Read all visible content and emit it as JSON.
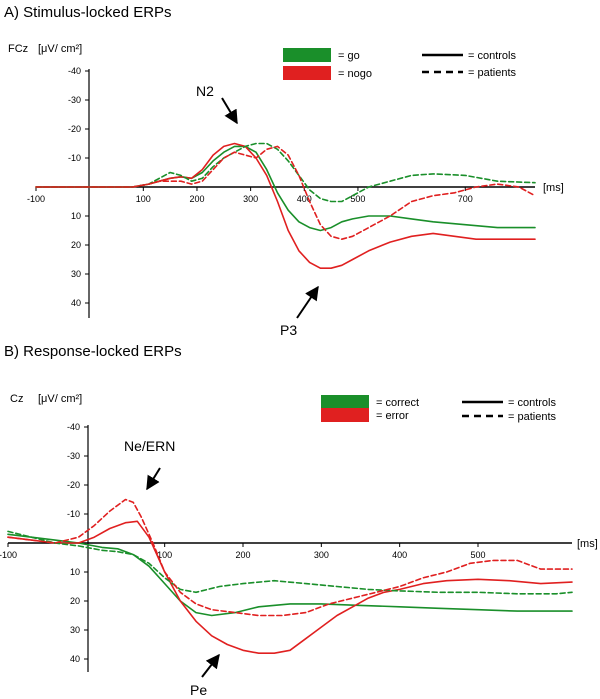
{
  "chart_data": [
    {
      "type": "line",
      "title": "A) Stimulus-locked ERPs",
      "channel_label": "FCz",
      "unit_label": "[μV/ cm²]",
      "xunit": "[ms]",
      "xlim": [
        -100,
        830
      ],
      "ylim": [
        -40,
        40
      ],
      "y_inverted": true,
      "xticks": [
        -100,
        100,
        200,
        300,
        400,
        500,
        700
      ],
      "yticks": [
        -40,
        -30,
        -20,
        -10,
        10,
        20,
        30,
        40
      ],
      "legend_colors": [
        {
          "label": "= go",
          "color": "#1a8f2a"
        },
        {
          "label": "= nogo",
          "color": "#e02020"
        }
      ],
      "legend_lines": [
        {
          "label": "= controls",
          "style": "solid"
        },
        {
          "label": "= patients",
          "style": "dashed"
        }
      ],
      "annotations": [
        {
          "text": "N2",
          "x": 275,
          "y": -14
        },
        {
          "text": "P3",
          "x": 425,
          "y": 28
        }
      ],
      "series": [
        {
          "color": "#1a8f2a",
          "style": "solid",
          "x": [
            -100,
            -70,
            -40,
            0,
            40,
            80,
            110,
            130,
            150,
            170,
            190,
            210,
            230,
            250,
            270,
            290,
            310,
            330,
            350,
            370,
            390,
            410,
            430,
            450,
            470,
            490,
            520,
            560,
            600,
            640,
            700,
            760,
            830
          ],
          "y": [
            0,
            0,
            0,
            0,
            0,
            0,
            -1,
            -2,
            -3,
            -3.5,
            -3,
            -5,
            -9,
            -12,
            -14,
            -14,
            -12,
            -6,
            2,
            8,
            12,
            14,
            15,
            14,
            12,
            11,
            10,
            10,
            11,
            12,
            13,
            14,
            14
          ]
        },
        {
          "color": "#e02020",
          "style": "solid",
          "x": [
            -100,
            -70,
            -40,
            0,
            40,
            80,
            110,
            130,
            150,
            170,
            190,
            210,
            230,
            250,
            270,
            290,
            310,
            330,
            350,
            370,
            390,
            410,
            430,
            450,
            470,
            490,
            520,
            560,
            600,
            640,
            680,
            720,
            780,
            830
          ],
          "y": [
            0,
            0,
            0,
            0,
            0,
            0,
            -1,
            -2,
            -3,
            -3.5,
            -3,
            -6,
            -11,
            -14,
            -15,
            -14,
            -10,
            -4,
            5,
            15,
            22,
            26,
            28,
            28,
            27,
            25,
            22,
            19,
            17,
            16,
            17,
            18,
            18,
            18
          ]
        },
        {
          "color": "#1a8f2a",
          "style": "dashed",
          "x": [
            -100,
            -70,
            -40,
            0,
            40,
            80,
            110,
            130,
            150,
            170,
            190,
            210,
            230,
            250,
            270,
            290,
            310,
            330,
            350,
            370,
            390,
            410,
            430,
            450,
            470,
            490,
            520,
            560,
            600,
            640,
            700,
            760,
            830
          ],
          "y": [
            0,
            0,
            0,
            0,
            0,
            0,
            -1,
            -3,
            -5,
            -4,
            -2,
            -3,
            -7,
            -10,
            -12,
            -14,
            -15,
            -15,
            -13,
            -9,
            -4,
            1,
            4,
            5,
            5,
            3,
            0,
            -2,
            -4,
            -4.5,
            -4,
            -2,
            -1.5
          ]
        },
        {
          "color": "#e02020",
          "style": "dashed",
          "x": [
            -100,
            -70,
            -40,
            0,
            40,
            80,
            110,
            130,
            150,
            170,
            190,
            210,
            230,
            250,
            270,
            290,
            310,
            330,
            350,
            370,
            390,
            410,
            430,
            450,
            470,
            490,
            520,
            560,
            600,
            640,
            680,
            720,
            760,
            800,
            830
          ],
          "y": [
            0,
            0,
            0,
            0,
            0,
            0,
            -1,
            -2,
            -2,
            -2,
            -1,
            -2,
            -6,
            -10,
            -12,
            -11,
            -10,
            -13,
            -14,
            -11,
            -4,
            5,
            13,
            17,
            18,
            17,
            14,
            10,
            5,
            3,
            2,
            0,
            -1,
            0,
            3
          ]
        }
      ]
    },
    {
      "type": "line",
      "title": "B) Response-locked ERPs",
      "channel_label": "Cz",
      "unit_label": "[μV/ cm²]",
      "xunit": "[ms]",
      "xlim": [
        -100,
        620
      ],
      "ylim": [
        -40,
        40
      ],
      "y_inverted": true,
      "xticks": [
        -100,
        100,
        200,
        300,
        400,
        500
      ],
      "yticks": [
        -40,
        -30,
        -20,
        -10,
        10,
        20,
        30,
        40
      ],
      "legend_colors": [
        {
          "label": "= correct",
          "color": "#1a8f2a"
        },
        {
          "label": "= error",
          "color": "#e02020"
        }
      ],
      "legend_lines": [
        {
          "label": "= controls",
          "style": "solid"
        },
        {
          "label": "= patients",
          "style": "dashed"
        }
      ],
      "annotations": [
        {
          "text": "Ne/ERN",
          "x": 60,
          "y": -15
        },
        {
          "text": "Pe",
          "x": 150,
          "y": 38
        }
      ],
      "series": [
        {
          "color": "#1a8f2a",
          "style": "solid",
          "x": [
            -100,
            -70,
            -40,
            -10,
            20,
            40,
            60,
            80,
            100,
            120,
            140,
            160,
            190,
            220,
            260,
            300,
            350,
            400,
            450,
            500,
            550,
            600,
            620
          ],
          "y": [
            -3,
            -2,
            -1,
            0,
            1.5,
            2,
            4,
            8,
            14,
            20,
            24,
            25,
            24,
            22,
            21,
            21,
            21.5,
            22,
            22.5,
            23,
            23.5,
            23.5,
            23.5
          ]
        },
        {
          "color": "#e02020",
          "style": "solid",
          "x": [
            -100,
            -70,
            -40,
            -10,
            10,
            30,
            50,
            65,
            80,
            100,
            120,
            140,
            160,
            180,
            200,
            220,
            240,
            260,
            280,
            300,
            320,
            340,
            360,
            380,
            400,
            430,
            460,
            500,
            540,
            580,
            620
          ],
          "y": [
            -2,
            -1,
            0,
            0,
            -2,
            -5,
            -7,
            -7.5,
            -2,
            10,
            20,
            27,
            32,
            35,
            37,
            38,
            38,
            37,
            33,
            29,
            25,
            22,
            19,
            17,
            16,
            14,
            13,
            12.5,
            13,
            14,
            13.5
          ]
        },
        {
          "color": "#1a8f2a",
          "style": "dashed",
          "x": [
            -100,
            -70,
            -40,
            -10,
            20,
            40,
            60,
            80,
            100,
            120,
            140,
            170,
            200,
            240,
            280,
            320,
            360,
            400,
            450,
            500,
            550,
            600,
            620
          ],
          "y": [
            -4,
            -2,
            0,
            1,
            2.5,
            3,
            4,
            7,
            12,
            16,
            17,
            15,
            14,
            13,
            14,
            15,
            16,
            16.5,
            17,
            17,
            17.5,
            17.5,
            17
          ]
        },
        {
          "color": "#e02020",
          "style": "dashed",
          "x": [
            -100,
            -70,
            -40,
            -10,
            10,
            30,
            50,
            60,
            70,
            85,
            100,
            120,
            140,
            160,
            190,
            220,
            250,
            280,
            310,
            340,
            370,
            400,
            430,
            460,
            490,
            520,
            550,
            580,
            620
          ],
          "y": [
            -2,
            -1,
            0,
            -2,
            -6,
            -11,
            -15,
            -14,
            -9,
            0,
            10,
            17,
            21,
            23,
            24,
            25,
            25,
            24,
            21,
            19,
            17,
            15,
            12,
            10,
            7,
            6,
            6,
            9,
            9
          ]
        }
      ]
    }
  ]
}
